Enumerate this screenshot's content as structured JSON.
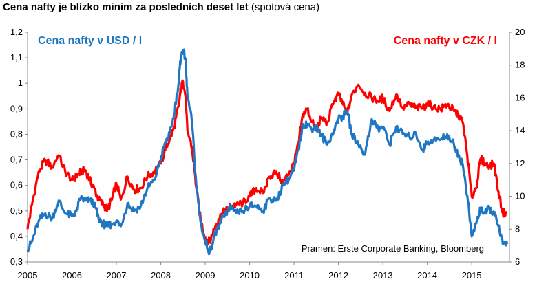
{
  "title": {
    "main": "Cena nafty je blízko minim za posledních deset let",
    "sub": "(spotová cena)"
  },
  "source_note": "Pramen: Erste Corporate Banking, Bloomberg",
  "colors": {
    "usd": "#1f77c4",
    "czk": "#ff0000"
  },
  "chart_data": {
    "type": "line",
    "title": "Cena nafty je blízko minim za posledních deset let (spotová cena)",
    "x_ticks": [
      "2005",
      "2006",
      "2007",
      "2008",
      "2009",
      "2010",
      "2011",
      "2012",
      "2013",
      "2014",
      "2015"
    ],
    "x_range": [
      2005.0,
      2015.85
    ],
    "y_left": {
      "ticks": [
        "0,3",
        "0,4",
        "0,5",
        "0,6",
        "0,7",
        "0,8",
        "0,9",
        "1",
        "1,1",
        "1,2"
      ],
      "range": [
        0.3,
        1.2
      ]
    },
    "y_right": {
      "ticks": [
        "6",
        "8",
        "10",
        "12",
        "14",
        "16",
        "18",
        "20"
      ],
      "range": [
        6,
        20
      ]
    },
    "grid": false,
    "series": [
      {
        "name": "Cena nafty v USD / l",
        "axis": "left",
        "color": "#1f77c4",
        "x": [
          2005.0,
          2005.1,
          2005.25,
          2005.4,
          2005.55,
          2005.7,
          2005.85,
          2006.0,
          2006.1,
          2006.2,
          2006.3,
          2006.4,
          2006.5,
          2006.6,
          2006.7,
          2006.8,
          2006.9,
          2007.0,
          2007.1,
          2007.25,
          2007.4,
          2007.55,
          2007.7,
          2007.85,
          2008.0,
          2008.1,
          2008.2,
          2008.3,
          2008.4,
          2008.45,
          2008.5,
          2008.55,
          2008.6,
          2008.7,
          2008.8,
          2008.9,
          2009.0,
          2009.1,
          2009.2,
          2009.3,
          2009.4,
          2009.5,
          2009.6,
          2009.7,
          2009.85,
          2010.0,
          2010.15,
          2010.3,
          2010.45,
          2010.6,
          2010.75,
          2010.9,
          2011.0,
          2011.1,
          2011.2,
          2011.3,
          2011.4,
          2011.5,
          2011.6,
          2011.75,
          2011.9,
          2012.0,
          2012.1,
          2012.2,
          2012.3,
          2012.45,
          2012.6,
          2012.75,
          2012.9,
          2013.0,
          2013.15,
          2013.3,
          2013.45,
          2013.6,
          2013.75,
          2013.9,
          2014.0,
          2014.15,
          2014.3,
          2014.45,
          2014.6,
          2014.7,
          2014.8,
          2014.9,
          2015.0,
          2015.1,
          2015.2,
          2015.3,
          2015.4,
          2015.5,
          2015.6,
          2015.7,
          2015.8
        ],
        "values": [
          0.35,
          0.38,
          0.46,
          0.49,
          0.47,
          0.54,
          0.49,
          0.48,
          0.5,
          0.55,
          0.54,
          0.54,
          0.53,
          0.47,
          0.45,
          0.44,
          0.45,
          0.46,
          0.44,
          0.53,
          0.5,
          0.52,
          0.59,
          0.62,
          0.7,
          0.77,
          0.8,
          0.88,
          1.0,
          1.1,
          1.13,
          1.1,
          0.95,
          0.85,
          0.6,
          0.45,
          0.38,
          0.34,
          0.4,
          0.43,
          0.48,
          0.5,
          0.51,
          0.49,
          0.5,
          0.52,
          0.52,
          0.5,
          0.55,
          0.54,
          0.6,
          0.63,
          0.66,
          0.74,
          0.84,
          0.84,
          0.82,
          0.83,
          0.8,
          0.76,
          0.82,
          0.86,
          0.87,
          0.89,
          0.8,
          0.76,
          0.72,
          0.86,
          0.82,
          0.83,
          0.76,
          0.83,
          0.8,
          0.79,
          0.8,
          0.74,
          0.77,
          0.78,
          0.78,
          0.8,
          0.76,
          0.72,
          0.68,
          0.56,
          0.4,
          0.45,
          0.51,
          0.49,
          0.51,
          0.49,
          0.44,
          0.37,
          0.37
        ]
      },
      {
        "name": "Cena nafty v CZK / l",
        "axis": "right",
        "color": "#ff0000",
        "x": [
          2005.0,
          2005.1,
          2005.25,
          2005.4,
          2005.55,
          2005.7,
          2005.85,
          2006.0,
          2006.1,
          2006.2,
          2006.3,
          2006.4,
          2006.5,
          2006.6,
          2006.7,
          2006.8,
          2006.9,
          2007.0,
          2007.1,
          2007.25,
          2007.4,
          2007.55,
          2007.7,
          2007.85,
          2008.0,
          2008.1,
          2008.2,
          2008.3,
          2008.4,
          2008.45,
          2008.5,
          2008.55,
          2008.6,
          2008.7,
          2008.8,
          2008.9,
          2009.0,
          2009.1,
          2009.2,
          2009.3,
          2009.4,
          2009.5,
          2009.6,
          2009.7,
          2009.85,
          2010.0,
          2010.15,
          2010.3,
          2010.45,
          2010.6,
          2010.75,
          2010.9,
          2011.0,
          2011.1,
          2011.2,
          2011.3,
          2011.4,
          2011.5,
          2011.6,
          2011.75,
          2011.9,
          2012.0,
          2012.1,
          2012.2,
          2012.3,
          2012.45,
          2012.6,
          2012.75,
          2012.9,
          2013.0,
          2013.15,
          2013.3,
          2013.45,
          2013.6,
          2013.75,
          2013.9,
          2014.0,
          2014.15,
          2014.3,
          2014.45,
          2014.6,
          2014.7,
          2014.8,
          2014.9,
          2015.0,
          2015.1,
          2015.2,
          2015.3,
          2015.4,
          2015.5,
          2015.6,
          2015.7,
          2015.8
        ],
        "values": [
          8.0,
          9.5,
          11.5,
          12.2,
          11.8,
          12.5,
          11.5,
          11.0,
          11.2,
          11.5,
          11.6,
          11.0,
          10.5,
          9.8,
          9.5,
          9.2,
          9.8,
          10.8,
          9.8,
          11.2,
          10.4,
          10.5,
          11.2,
          11.5,
          12.0,
          12.8,
          13.5,
          14.2,
          15.5,
          16.5,
          17.0,
          16.2,
          14.0,
          13.0,
          10.5,
          8.5,
          7.5,
          7.2,
          8.0,
          8.6,
          9.0,
          9.2,
          9.4,
          9.5,
          9.6,
          10.0,
          10.5,
          10.2,
          11.2,
          11.5,
          10.8,
          11.5,
          12.0,
          13.2,
          15.0,
          15.3,
          14.6,
          14.0,
          14.8,
          14.5,
          15.8,
          16.2,
          15.6,
          15.0,
          16.2,
          16.8,
          16.3,
          16.0,
          15.8,
          16.0,
          15.2,
          16.2,
          15.4,
          15.6,
          15.4,
          15.4,
          15.6,
          15.5,
          15.3,
          15.6,
          15.2,
          15.0,
          14.5,
          12.5,
          10.0,
          10.5,
          12.3,
          12.0,
          11.8,
          12.0,
          10.3,
          9.0,
          9.0
        ]
      }
    ]
  }
}
